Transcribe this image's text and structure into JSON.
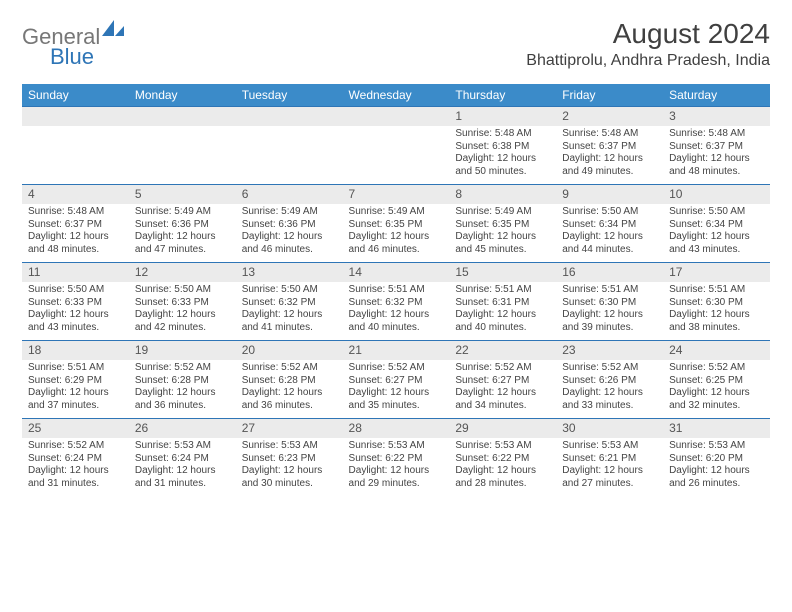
{
  "logo": {
    "text1": "General",
    "text2": "Blue"
  },
  "title": "August 2024",
  "location": "Bhattiprolu, Andhra Pradesh, India",
  "colors": {
    "header_bg": "#3b8bc9",
    "header_text": "#ffffff",
    "daynum_bg": "#ebebeb",
    "border": "#2e75b6",
    "logo_blue": "#2e75b6",
    "text": "#404040"
  },
  "columns": [
    "Sunday",
    "Monday",
    "Tuesday",
    "Wednesday",
    "Thursday",
    "Friday",
    "Saturday"
  ],
  "weeks": [
    {
      "days": [
        null,
        null,
        null,
        null,
        {
          "n": "1",
          "sr": "5:48 AM",
          "ss": "6:38 PM",
          "dl": "12 hours and 50 minutes."
        },
        {
          "n": "2",
          "sr": "5:48 AM",
          "ss": "6:37 PM",
          "dl": "12 hours and 49 minutes."
        },
        {
          "n": "3",
          "sr": "5:48 AM",
          "ss": "6:37 PM",
          "dl": "12 hours and 48 minutes."
        }
      ]
    },
    {
      "days": [
        {
          "n": "4",
          "sr": "5:48 AM",
          "ss": "6:37 PM",
          "dl": "12 hours and 48 minutes."
        },
        {
          "n": "5",
          "sr": "5:49 AM",
          "ss": "6:36 PM",
          "dl": "12 hours and 47 minutes."
        },
        {
          "n": "6",
          "sr": "5:49 AM",
          "ss": "6:36 PM",
          "dl": "12 hours and 46 minutes."
        },
        {
          "n": "7",
          "sr": "5:49 AM",
          "ss": "6:35 PM",
          "dl": "12 hours and 46 minutes."
        },
        {
          "n": "8",
          "sr": "5:49 AM",
          "ss": "6:35 PM",
          "dl": "12 hours and 45 minutes."
        },
        {
          "n": "9",
          "sr": "5:50 AM",
          "ss": "6:34 PM",
          "dl": "12 hours and 44 minutes."
        },
        {
          "n": "10",
          "sr": "5:50 AM",
          "ss": "6:34 PM",
          "dl": "12 hours and 43 minutes."
        }
      ]
    },
    {
      "days": [
        {
          "n": "11",
          "sr": "5:50 AM",
          "ss": "6:33 PM",
          "dl": "12 hours and 43 minutes."
        },
        {
          "n": "12",
          "sr": "5:50 AM",
          "ss": "6:33 PM",
          "dl": "12 hours and 42 minutes."
        },
        {
          "n": "13",
          "sr": "5:50 AM",
          "ss": "6:32 PM",
          "dl": "12 hours and 41 minutes."
        },
        {
          "n": "14",
          "sr": "5:51 AM",
          "ss": "6:32 PM",
          "dl": "12 hours and 40 minutes."
        },
        {
          "n": "15",
          "sr": "5:51 AM",
          "ss": "6:31 PM",
          "dl": "12 hours and 40 minutes."
        },
        {
          "n": "16",
          "sr": "5:51 AM",
          "ss": "6:30 PM",
          "dl": "12 hours and 39 minutes."
        },
        {
          "n": "17",
          "sr": "5:51 AM",
          "ss": "6:30 PM",
          "dl": "12 hours and 38 minutes."
        }
      ]
    },
    {
      "days": [
        {
          "n": "18",
          "sr": "5:51 AM",
          "ss": "6:29 PM",
          "dl": "12 hours and 37 minutes."
        },
        {
          "n": "19",
          "sr": "5:52 AM",
          "ss": "6:28 PM",
          "dl": "12 hours and 36 minutes."
        },
        {
          "n": "20",
          "sr": "5:52 AM",
          "ss": "6:28 PM",
          "dl": "12 hours and 36 minutes."
        },
        {
          "n": "21",
          "sr": "5:52 AM",
          "ss": "6:27 PM",
          "dl": "12 hours and 35 minutes."
        },
        {
          "n": "22",
          "sr": "5:52 AM",
          "ss": "6:27 PM",
          "dl": "12 hours and 34 minutes."
        },
        {
          "n": "23",
          "sr": "5:52 AM",
          "ss": "6:26 PM",
          "dl": "12 hours and 33 minutes."
        },
        {
          "n": "24",
          "sr": "5:52 AM",
          "ss": "6:25 PM",
          "dl": "12 hours and 32 minutes."
        }
      ]
    },
    {
      "days": [
        {
          "n": "25",
          "sr": "5:52 AM",
          "ss": "6:24 PM",
          "dl": "12 hours and 31 minutes."
        },
        {
          "n": "26",
          "sr": "5:53 AM",
          "ss": "6:24 PM",
          "dl": "12 hours and 31 minutes."
        },
        {
          "n": "27",
          "sr": "5:53 AM",
          "ss": "6:23 PM",
          "dl": "12 hours and 30 minutes."
        },
        {
          "n": "28",
          "sr": "5:53 AM",
          "ss": "6:22 PM",
          "dl": "12 hours and 29 minutes."
        },
        {
          "n": "29",
          "sr": "5:53 AM",
          "ss": "6:22 PM",
          "dl": "12 hours and 28 minutes."
        },
        {
          "n": "30",
          "sr": "5:53 AM",
          "ss": "6:21 PM",
          "dl": "12 hours and 27 minutes."
        },
        {
          "n": "31",
          "sr": "5:53 AM",
          "ss": "6:20 PM",
          "dl": "12 hours and 26 minutes."
        }
      ]
    }
  ],
  "labels": {
    "sunrise": "Sunrise: ",
    "sunset": "Sunset: ",
    "daylight": "Daylight: "
  }
}
